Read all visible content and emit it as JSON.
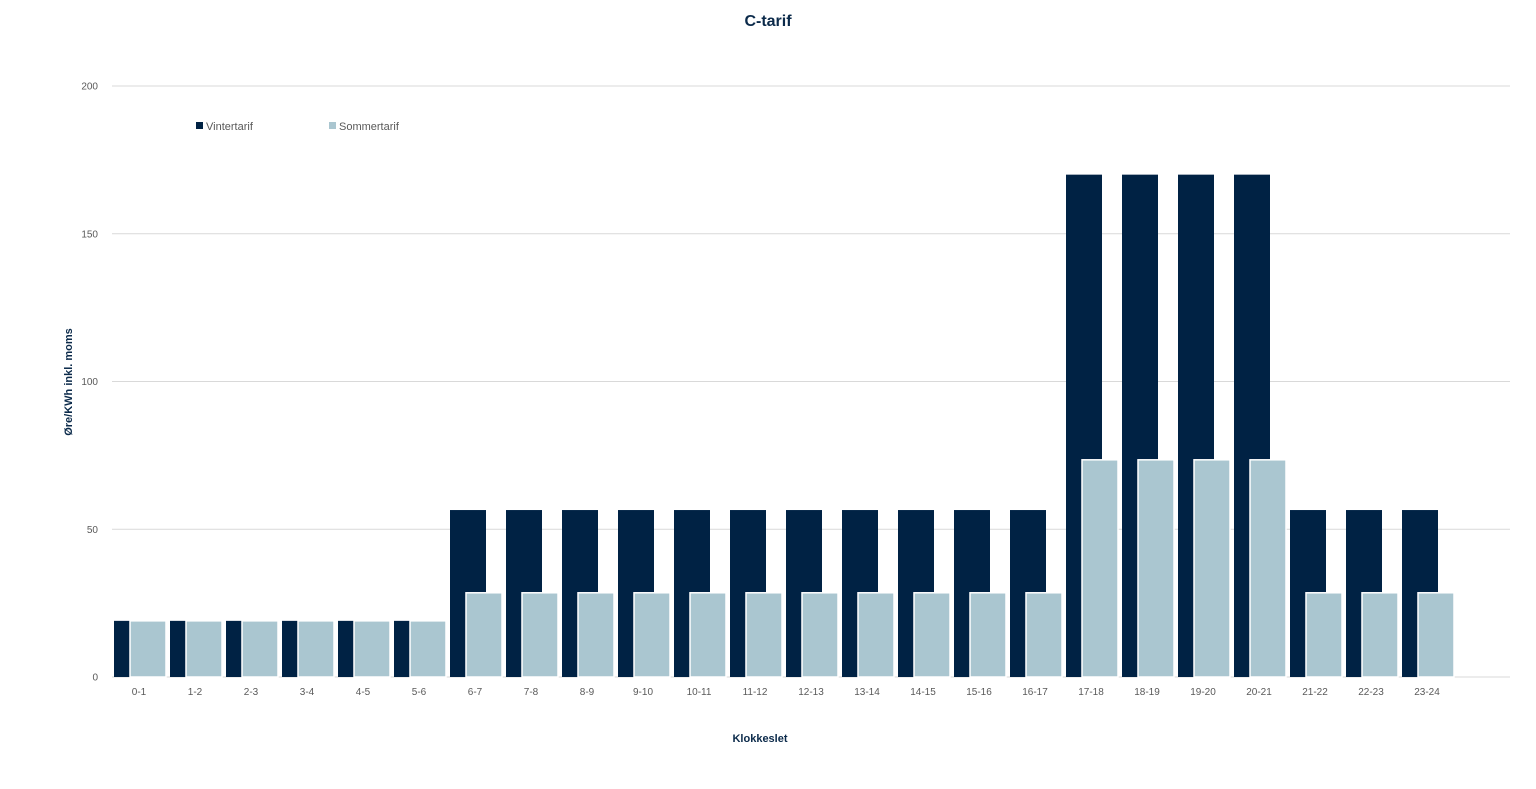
{
  "chart_data": {
    "type": "bar",
    "title": "C-tarif",
    "xlabel": "Klokkeslet",
    "ylabel": "Øre/KWh inkl. moms",
    "ylim": [
      0,
      200
    ],
    "yticks": [
      0,
      50,
      100,
      150,
      200
    ],
    "grid": true,
    "legend_position": "top-left",
    "categories": [
      "0-1",
      "1-2",
      "2-3",
      "3-4",
      "4-5",
      "5-6",
      "6-7",
      "7-8",
      "8-9",
      "9-10",
      "10-11",
      "11-12",
      "12-13",
      "13-14",
      "14-15",
      "15-16",
      "16-17",
      "17-18",
      "18-19",
      "19-20",
      "20-21",
      "21-22",
      "22-23",
      "23-24"
    ],
    "series": [
      {
        "name": "Vintertarif",
        "color": "#002244",
        "values": [
          19,
          19,
          19,
          19,
          19,
          19,
          56.5,
          56.5,
          56.5,
          56.5,
          56.5,
          56.5,
          56.5,
          56.5,
          56.5,
          56.5,
          56.5,
          170,
          170,
          170,
          170,
          56.5,
          56.5,
          56.5
        ]
      },
      {
        "name": "Sommertarif",
        "color": "#aac6d0",
        "values": [
          19,
          19,
          19,
          19,
          19,
          19,
          28.5,
          28.5,
          28.5,
          28.5,
          28.5,
          28.5,
          28.5,
          28.5,
          28.5,
          28.5,
          28.5,
          73.5,
          73.5,
          73.5,
          73.5,
          28.5,
          28.5,
          28.5
        ]
      }
    ],
    "colors": {
      "title": "#0b2a4a",
      "gridline": "#d9d9d9",
      "tick_text": "#595959"
    }
  }
}
